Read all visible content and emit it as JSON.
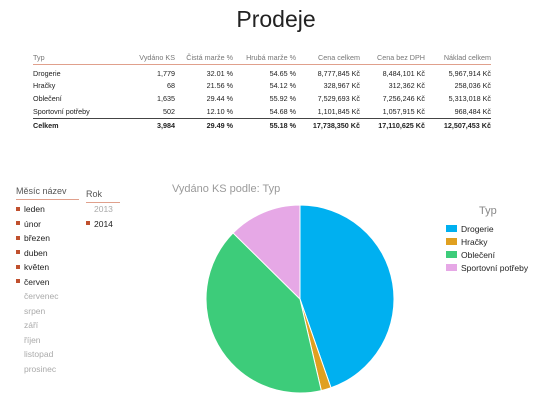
{
  "title": "Prodeje",
  "table": {
    "headers": [
      "Typ",
      "Vydáno KS",
      "Čistá marže %",
      "Hrubá marže %",
      "Cena celkem",
      "Cena bez DPH",
      "Náklad celkem"
    ],
    "rows": [
      [
        "Drogerie",
        "1,779",
        "32.01 %",
        "54.65 %",
        "8,777,845 Kč",
        "8,484,101 Kč",
        "5,967,914 Kč"
      ],
      [
        "Hračky",
        "68",
        "21.56 %",
        "54.12 %",
        "328,967 Kč",
        "312,362 Kč",
        "258,036 Kč"
      ],
      [
        "Oblečení",
        "1,635",
        "29.44 %",
        "55.92 %",
        "7,529,693 Kč",
        "7,256,246 Kč",
        "5,313,018 Kč"
      ],
      [
        "Sportovní potřeby",
        "502",
        "12.10 %",
        "54.68 %",
        "1,101,845 Kč",
        "1,057,915 Kč",
        "968,484 Kč"
      ]
    ],
    "total": [
      "Celkem",
      "3,984",
      "29.49 %",
      "55.18 %",
      "17,738,350 Kč",
      "17,110,625 Kč",
      "12,507,453 Kč"
    ]
  },
  "slicer_month": {
    "title": "Měsíc název",
    "items": [
      {
        "label": "leden",
        "selected": true
      },
      {
        "label": "únor",
        "selected": true
      },
      {
        "label": "březen",
        "selected": true
      },
      {
        "label": "duben",
        "selected": true
      },
      {
        "label": "květen",
        "selected": true
      },
      {
        "label": "červen",
        "selected": true
      },
      {
        "label": "červenec",
        "selected": false
      },
      {
        "label": "srpen",
        "selected": false
      },
      {
        "label": "září",
        "selected": false
      },
      {
        "label": "říjen",
        "selected": false
      },
      {
        "label": "listopad",
        "selected": false
      },
      {
        "label": "prosinec",
        "selected": false
      }
    ]
  },
  "slicer_year": {
    "title": "Rok",
    "items": [
      {
        "label": "2013",
        "selected": false
      },
      {
        "label": "2014",
        "selected": true
      }
    ]
  },
  "colors": {
    "accent": "#c0502e",
    "Drogerie": "#00b0f0",
    "Hračky": "#e0a020",
    "Oblečení": "#3dcc7a",
    "Sportovní potřeby": "#e6a8e6"
  },
  "chart_data": {
    "type": "pie",
    "title": "Vydáno KS podle: Typ",
    "legend_title": "Typ",
    "legend_position": "right",
    "categories": [
      "Drogerie",
      "Hračky",
      "Oblečení",
      "Sportovní potřeby"
    ],
    "values": [
      1779,
      68,
      1635,
      502
    ]
  }
}
